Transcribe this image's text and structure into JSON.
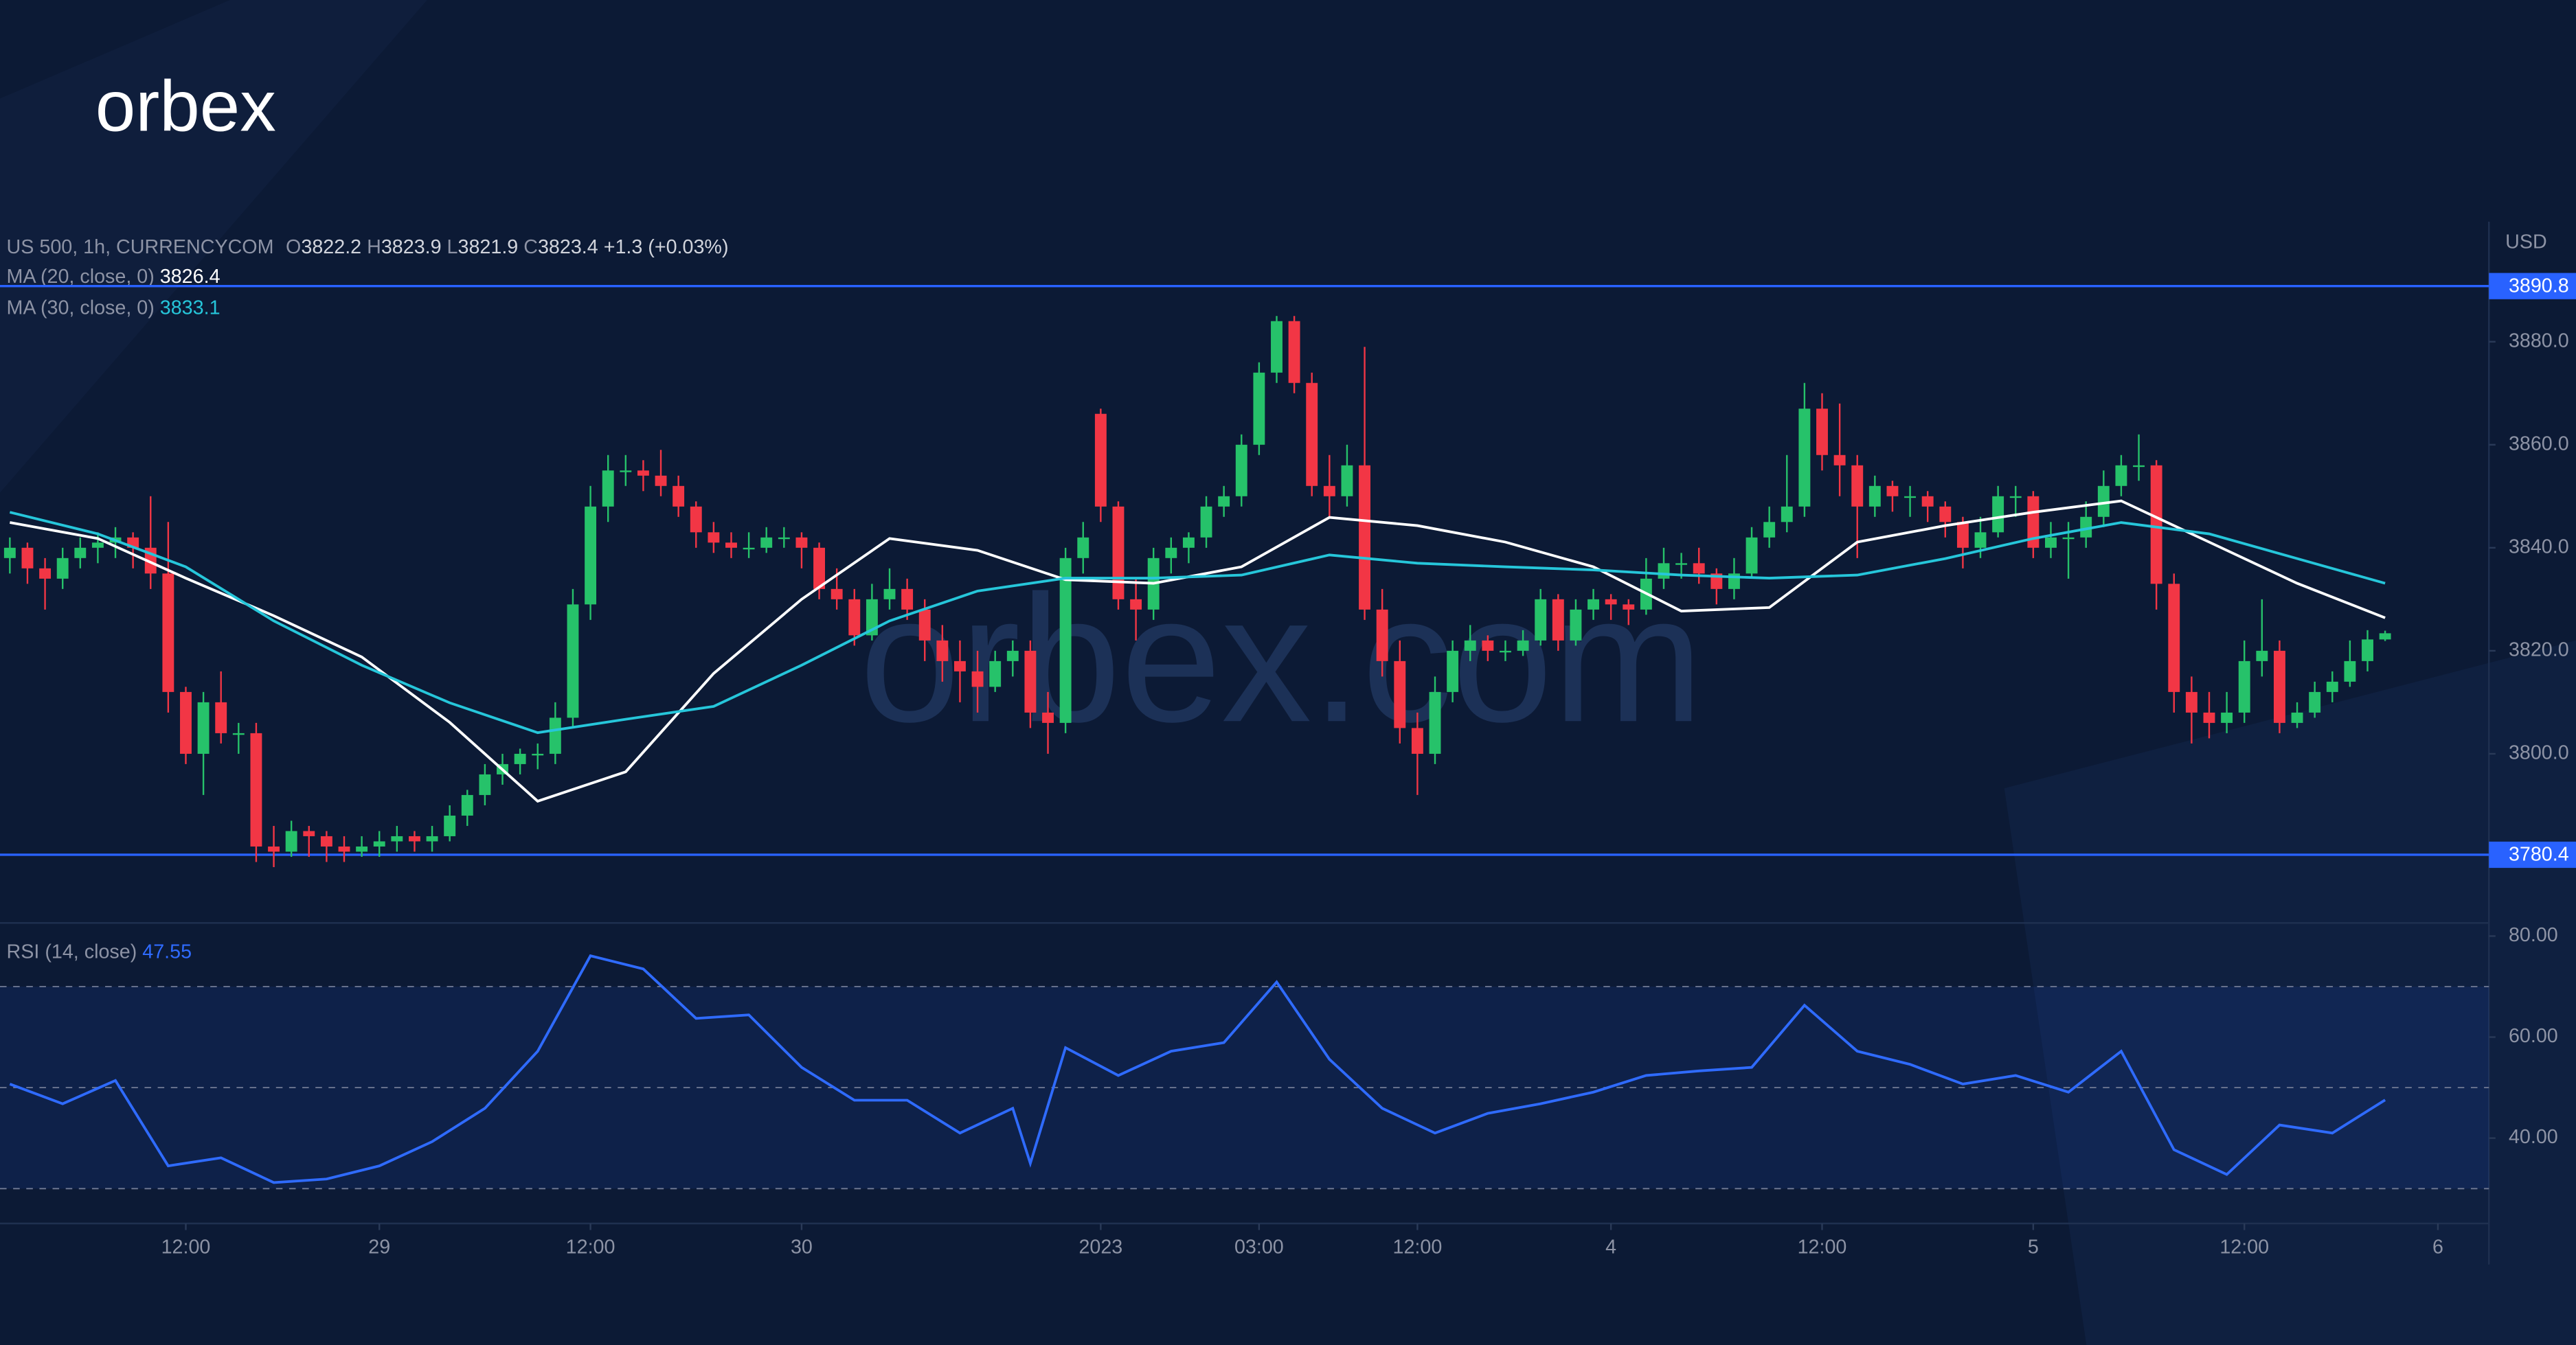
{
  "brand": "orbex",
  "watermark": "orbex.com",
  "chart_data": [
    {
      "type": "candlestick",
      "title": "US 500, 1h, CURRENCYCOM",
      "ohlc_keys": [
        "O",
        "H",
        "L",
        "C"
      ],
      "change": "+1.3 (+0.03%)",
      "y_unit": "USD",
      "up_color": "#26c26a",
      "down_color": "#f23645",
      "xlim": [
        -0.56,
        140.9
      ],
      "ylim": [
        3767.8,
        3903.3
      ],
      "yticks": [
        {
          "value": 3800,
          "label": "3800.0"
        },
        {
          "value": 3820,
          "label": "3820.0"
        },
        {
          "value": 3840,
          "label": "3840.0"
        },
        {
          "value": 3860,
          "label": "3860.0"
        },
        {
          "value": 3880,
          "label": "3880.0"
        }
      ],
      "hlines": [
        {
          "value": 3890.8,
          "color": "#2962ff"
        },
        {
          "value": 3780.4,
          "color": "#2962ff"
        }
      ],
      "candles": [
        [
          3838,
          3842,
          3835,
          3840
        ],
        [
          3840,
          3841,
          3833,
          3836
        ],
        [
          3836,
          3838,
          3828,
          3834
        ],
        [
          3834,
          3840,
          3832,
          3838
        ],
        [
          3838,
          3842,
          3836,
          3840
        ],
        [
          3840,
          3843,
          3837,
          3841
        ],
        [
          3841,
          3844,
          3838,
          3842
        ],
        [
          3842,
          3843,
          3836,
          3840
        ],
        [
          3840,
          3850,
          3832,
          3835
        ],
        [
          3835,
          3845,
          3808,
          3812
        ],
        [
          3812,
          3813,
          3798,
          3800
        ],
        [
          3800,
          3812,
          3792,
          3810
        ],
        [
          3810,
          3816,
          3802,
          3804
        ],
        [
          3804,
          3806,
          3800,
          3804
        ],
        [
          3804,
          3806,
          3779,
          3782
        ],
        [
          3782,
          3786,
          3778,
          3781
        ],
        [
          3781,
          3787,
          3780,
          3785
        ],
        [
          3785,
          3786,
          3780,
          3784
        ],
        [
          3784,
          3785,
          3779,
          3782
        ],
        [
          3782,
          3784,
          3779,
          3781
        ],
        [
          3781,
          3784,
          3780,
          3782
        ],
        [
          3782,
          3785,
          3780,
          3783
        ],
        [
          3783,
          3786,
          3781,
          3784
        ],
        [
          3784,
          3785,
          3781,
          3783
        ],
        [
          3783,
          3786,
          3781,
          3784
        ],
        [
          3784,
          3790,
          3783,
          3788
        ],
        [
          3788,
          3793,
          3786,
          3792
        ],
        [
          3792,
          3798,
          3790,
          3796
        ],
        [
          3796,
          3800,
          3794,
          3798
        ],
        [
          3798,
          3801,
          3796,
          3800
        ],
        [
          3800,
          3802,
          3797,
          3800
        ],
        [
          3800,
          3810,
          3798,
          3807
        ],
        [
          3807,
          3832,
          3805,
          3829
        ],
        [
          3829,
          3852,
          3826,
          3848
        ],
        [
          3848,
          3858,
          3845,
          3855
        ],
        [
          3855,
          3858,
          3852,
          3855
        ],
        [
          3855,
          3857,
          3851,
          3854
        ],
        [
          3854,
          3859,
          3850,
          3852
        ],
        [
          3852,
          3854,
          3846,
          3848
        ],
        [
          3848,
          3849,
          3840,
          3843
        ],
        [
          3843,
          3845,
          3839,
          3841
        ],
        [
          3841,
          3843,
          3838,
          3840
        ],
        [
          3840,
          3843,
          3838,
          3840
        ],
        [
          3840,
          3844,
          3839,
          3842
        ],
        [
          3842,
          3844,
          3840,
          3842
        ],
        [
          3842,
          3843,
          3836,
          3840
        ],
        [
          3840,
          3841,
          3830,
          3832
        ],
        [
          3832,
          3836,
          3828,
          3830
        ],
        [
          3830,
          3832,
          3821,
          3823
        ],
        [
          3823,
          3833,
          3822,
          3830
        ],
        [
          3830,
          3836,
          3828,
          3832
        ],
        [
          3832,
          3834,
          3826,
          3828
        ],
        [
          3828,
          3830,
          3818,
          3822
        ],
        [
          3822,
          3825,
          3814,
          3818
        ],
        [
          3818,
          3822,
          3810,
          3816
        ],
        [
          3816,
          3820,
          3808,
          3813
        ],
        [
          3813,
          3820,
          3812,
          3818
        ],
        [
          3818,
          3822,
          3815,
          3820
        ],
        [
          3820,
          3822,
          3805,
          3808
        ],
        [
          3808,
          3812,
          3800,
          3806
        ],
        [
          3806,
          3840,
          3804,
          3838
        ],
        [
          3838,
          3845,
          3835,
          3842
        ],
        [
          3866,
          3867,
          3845,
          3848
        ],
        [
          3848,
          3849,
          3828,
          3830
        ],
        [
          3830,
          3834,
          3822,
          3828
        ],
        [
          3828,
          3840,
          3826,
          3838
        ],
        [
          3838,
          3842,
          3835,
          3840
        ],
        [
          3840,
          3843,
          3837,
          3842
        ],
        [
          3842,
          3850,
          3840,
          3848
        ],
        [
          3848,
          3852,
          3846,
          3850
        ],
        [
          3850,
          3862,
          3848,
          3860
        ],
        [
          3860,
          3876,
          3858,
          3874
        ],
        [
          3874,
          3885,
          3872,
          3884
        ],
        [
          3884,
          3885,
          3870,
          3872
        ],
        [
          3872,
          3874,
          3850,
          3852
        ],
        [
          3852,
          3858,
          3846,
          3850
        ],
        [
          3850,
          3860,
          3848,
          3856
        ],
        [
          3856,
          3879,
          3826,
          3828
        ],
        [
          3828,
          3832,
          3815,
          3818
        ],
        [
          3818,
          3822,
          3802,
          3805
        ],
        [
          3805,
          3808,
          3792,
          3800
        ],
        [
          3800,
          3815,
          3798,
          3812
        ],
        [
          3812,
          3822,
          3810,
          3820
        ],
        [
          3820,
          3825,
          3818,
          3822
        ],
        [
          3822,
          3823,
          3818,
          3820
        ],
        [
          3820,
          3822,
          3818,
          3820
        ],
        [
          3820,
          3824,
          3819,
          3822
        ],
        [
          3822,
          3832,
          3821,
          3830
        ],
        [
          3830,
          3831,
          3820,
          3822
        ],
        [
          3822,
          3830,
          3821,
          3828
        ],
        [
          3828,
          3832,
          3826,
          3830
        ],
        [
          3830,
          3831,
          3826,
          3829
        ],
        [
          3829,
          3830,
          3825,
          3828
        ],
        [
          3828,
          3838,
          3827,
          3834
        ],
        [
          3834,
          3840,
          3832,
          3837
        ],
        [
          3837,
          3839,
          3834,
          3837
        ],
        [
          3837,
          3840,
          3833,
          3835
        ],
        [
          3835,
          3836,
          3829,
          3832
        ],
        [
          3832,
          3838,
          3830,
          3835
        ],
        [
          3835,
          3844,
          3834,
          3842
        ],
        [
          3842,
          3848,
          3840,
          3845
        ],
        [
          3845,
          3858,
          3843,
          3848
        ],
        [
          3848,
          3872,
          3846,
          3867
        ],
        [
          3867,
          3870,
          3855,
          3858
        ],
        [
          3858,
          3868,
          3850,
          3856
        ],
        [
          3856,
          3858,
          3838,
          3848
        ],
        [
          3848,
          3854,
          3846,
          3852
        ],
        [
          3852,
          3853,
          3847,
          3850
        ],
        [
          3850,
          3852,
          3846,
          3850
        ],
        [
          3850,
          3851,
          3845,
          3848
        ],
        [
          3848,
          3849,
          3842,
          3845
        ],
        [
          3845,
          3846,
          3836,
          3840
        ],
        [
          3840,
          3846,
          3838,
          3843
        ],
        [
          3843,
          3852,
          3842,
          3850
        ],
        [
          3850,
          3852,
          3846,
          3850
        ],
        [
          3850,
          3851,
          3838,
          3840
        ],
        [
          3840,
          3845,
          3838,
          3842
        ],
        [
          3842,
          3845,
          3834,
          3842
        ],
        [
          3842,
          3849,
          3840,
          3846
        ],
        [
          3846,
          3855,
          3844,
          3852
        ],
        [
          3852,
          3858,
          3850,
          3856
        ],
        [
          3856,
          3862,
          3853,
          3856
        ],
        [
          3856,
          3857,
          3828,
          3833
        ],
        [
          3833,
          3835,
          3808,
          3812
        ],
        [
          3812,
          3815,
          3802,
          3808
        ],
        [
          3808,
          3812,
          3803,
          3806
        ],
        [
          3806,
          3812,
          3804,
          3808
        ],
        [
          3808,
          3822,
          3806,
          3818
        ],
        [
          3818,
          3830,
          3815,
          3820
        ],
        [
          3820,
          3822,
          3804,
          3806
        ],
        [
          3806,
          3810,
          3805,
          3808
        ],
        [
          3808,
          3814,
          3807,
          3812
        ],
        [
          3812,
          3816,
          3810,
          3814
        ],
        [
          3814,
          3822,
          3813,
          3818
        ],
        [
          3818,
          3824,
          3816,
          3822.2
        ],
        [
          3822.2,
          3823.9,
          3821.9,
          3823.4
        ]
      ],
      "series": [
        {
          "name": "MA (20, close, 0)",
          "color": "#ffffff",
          "x": [
            0,
            5,
            10,
            15,
            20,
            25,
            30,
            35,
            40,
            45,
            50,
            55,
            60,
            65,
            70,
            75,
            80,
            85,
            90,
            95,
            100,
            105,
            110,
            115,
            120,
            125,
            130,
            135
          ],
          "values": [
            3844.9,
            3841.8,
            3834.1,
            3826.8,
            3818.8,
            3806.1,
            3790.8,
            3796.5,
            3815.6,
            3830,
            3841.8,
            3839.5,
            3833.8,
            3833.1,
            3836.3,
            3845.9,
            3844.3,
            3841.1,
            3836.3,
            3827.7,
            3828.4,
            3841.1,
            3844.3,
            3846.9,
            3849.1,
            3841.1,
            3833.1,
            3826.4
          ]
        },
        {
          "name": "MA (30, close, 0)",
          "color": "#26c6da",
          "x": [
            0,
            5,
            10,
            15,
            20,
            25,
            30,
            35,
            40,
            45,
            50,
            55,
            60,
            65,
            70,
            75,
            80,
            85,
            90,
            95,
            100,
            105,
            110,
            115,
            120,
            125,
            130,
            135
          ],
          "values": [
            3846.9,
            3842.7,
            3836.3,
            3825.8,
            3817.2,
            3809.9,
            3804.1,
            3806.7,
            3809.2,
            3817.2,
            3825.8,
            3831.6,
            3834.1,
            3834.1,
            3834.7,
            3838.6,
            3837,
            3836.3,
            3835.7,
            3834.7,
            3834.1,
            3834.7,
            3837.9,
            3841.8,
            3844.9,
            3842.7,
            3837.9,
            3833.1
          ]
        }
      ]
    },
    {
      "type": "line",
      "xlim": [
        -0.56,
        140.9
      ],
      "ylim": [
        23.1,
        82.6
      ],
      "yticks": [
        {
          "value": 40,
          "label": "40.00"
        },
        {
          "value": 60,
          "label": "60.00"
        },
        {
          "value": 80,
          "label": "80.00"
        }
      ],
      "levels": [
        30,
        50,
        70
      ],
      "xticks": [
        {
          "value": 10,
          "label": "12:00"
        },
        {
          "value": 21,
          "label": "29"
        },
        {
          "value": 33,
          "label": "12:00"
        },
        {
          "value": 45,
          "label": "30"
        },
        {
          "value": 62,
          "label": "2023"
        },
        {
          "value": 71,
          "label": "03:00"
        },
        {
          "value": 80,
          "label": "12:00"
        },
        {
          "value": 91,
          "label": "4"
        },
        {
          "value": 103,
          "label": "12:00"
        },
        {
          "value": 115,
          "label": "5"
        },
        {
          "value": 127,
          "label": "12:00"
        },
        {
          "value": 138,
          "label": "6"
        }
      ],
      "series": [
        {
          "name": "RSI (14, close)",
          "color": "#2f6bff",
          "x": [
            0,
            3,
            6,
            9,
            12,
            15,
            18,
            21,
            24,
            27,
            30,
            33,
            36,
            39,
            42,
            45,
            48,
            51,
            54,
            57,
            58,
            60,
            63,
            66,
            69,
            72,
            75,
            78,
            81,
            84,
            87,
            90,
            93,
            96,
            99,
            102,
            105,
            108,
            111,
            114,
            117,
            120,
            123,
            126,
            129,
            132,
            135
          ],
          "values": [
            50.7,
            46.8,
            51.4,
            34.5,
            36.1,
            31.2,
            31.9,
            34.5,
            39.3,
            45.9,
            57.2,
            76.1,
            73.5,
            63.7,
            64.4,
            54,
            47.5,
            47.5,
            41,
            45.9,
            35,
            57.9,
            52.4,
            57.2,
            58.9,
            70.9,
            55.6,
            45.9,
            41,
            44.9,
            46.8,
            49.1,
            52.4,
            53.3,
            54,
            66.3,
            57.2,
            54.6,
            50.7,
            52.4,
            49.1,
            57.2,
            37.7,
            32.8,
            42.6,
            41,
            47.55
          ]
        }
      ]
    }
  ]
}
